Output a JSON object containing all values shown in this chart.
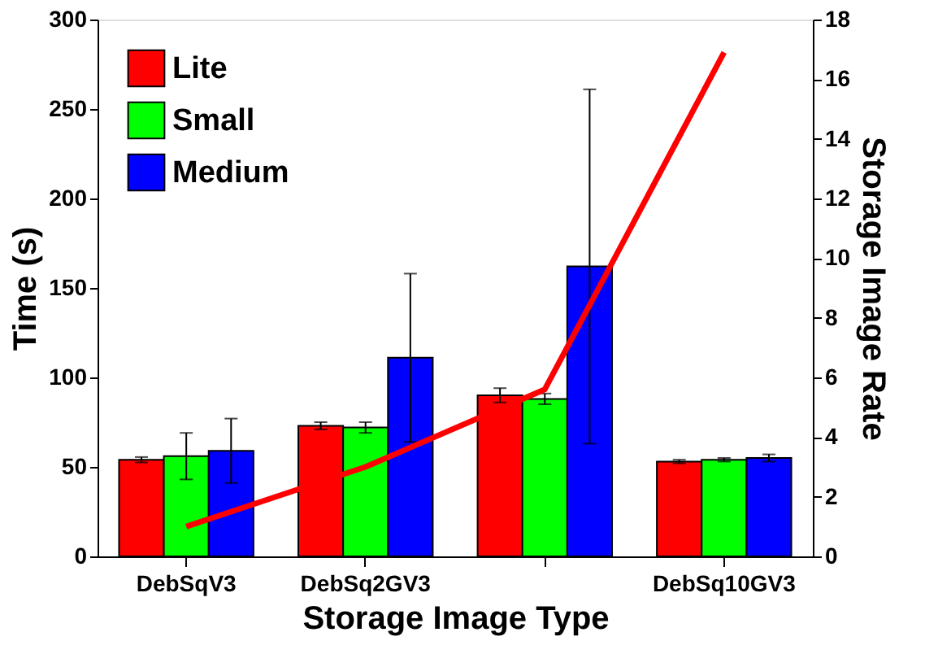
{
  "chart_data": {
    "type": "bar",
    "xlabel": "Storage Image Type",
    "ylabel": "Time (s)",
    "y2label": "Storage Image Rate",
    "categories": [
      "DebSqV3",
      "DebSq2GV3",
      null,
      "DebSq10GV3"
    ],
    "series": [
      {
        "name": "Lite",
        "color": "#ff0000",
        "values": [
          54,
          73,
          90,
          53
        ],
        "errors": [
          1.5,
          2,
          4,
          1
        ]
      },
      {
        "name": "Small",
        "color": "#00ff00",
        "values": [
          56,
          72,
          88,
          54
        ],
        "errors": [
          13,
          3,
          3,
          1
        ]
      },
      {
        "name": "Medium",
        "color": "#0000ff",
        "values": [
          59,
          111,
          162,
          55
        ],
        "errors": [
          18,
          47,
          99,
          2
        ]
      },
      {
        "type": "line",
        "axis": "y2",
        "color": "#ff0000",
        "values": [
          1.0,
          3.0,
          5.6,
          16.9
        ]
      }
    ],
    "ylim": [
      0,
      300
    ],
    "yticks": [
      0,
      50,
      100,
      150,
      200,
      250,
      300
    ],
    "y2lim": [
      0,
      18
    ],
    "y2ticks": [
      0,
      2,
      4,
      6,
      8,
      10,
      12,
      14,
      16,
      18
    ],
    "legend": "top left",
    "grid": false,
    "marker": "none",
    "line_style": "solid"
  }
}
